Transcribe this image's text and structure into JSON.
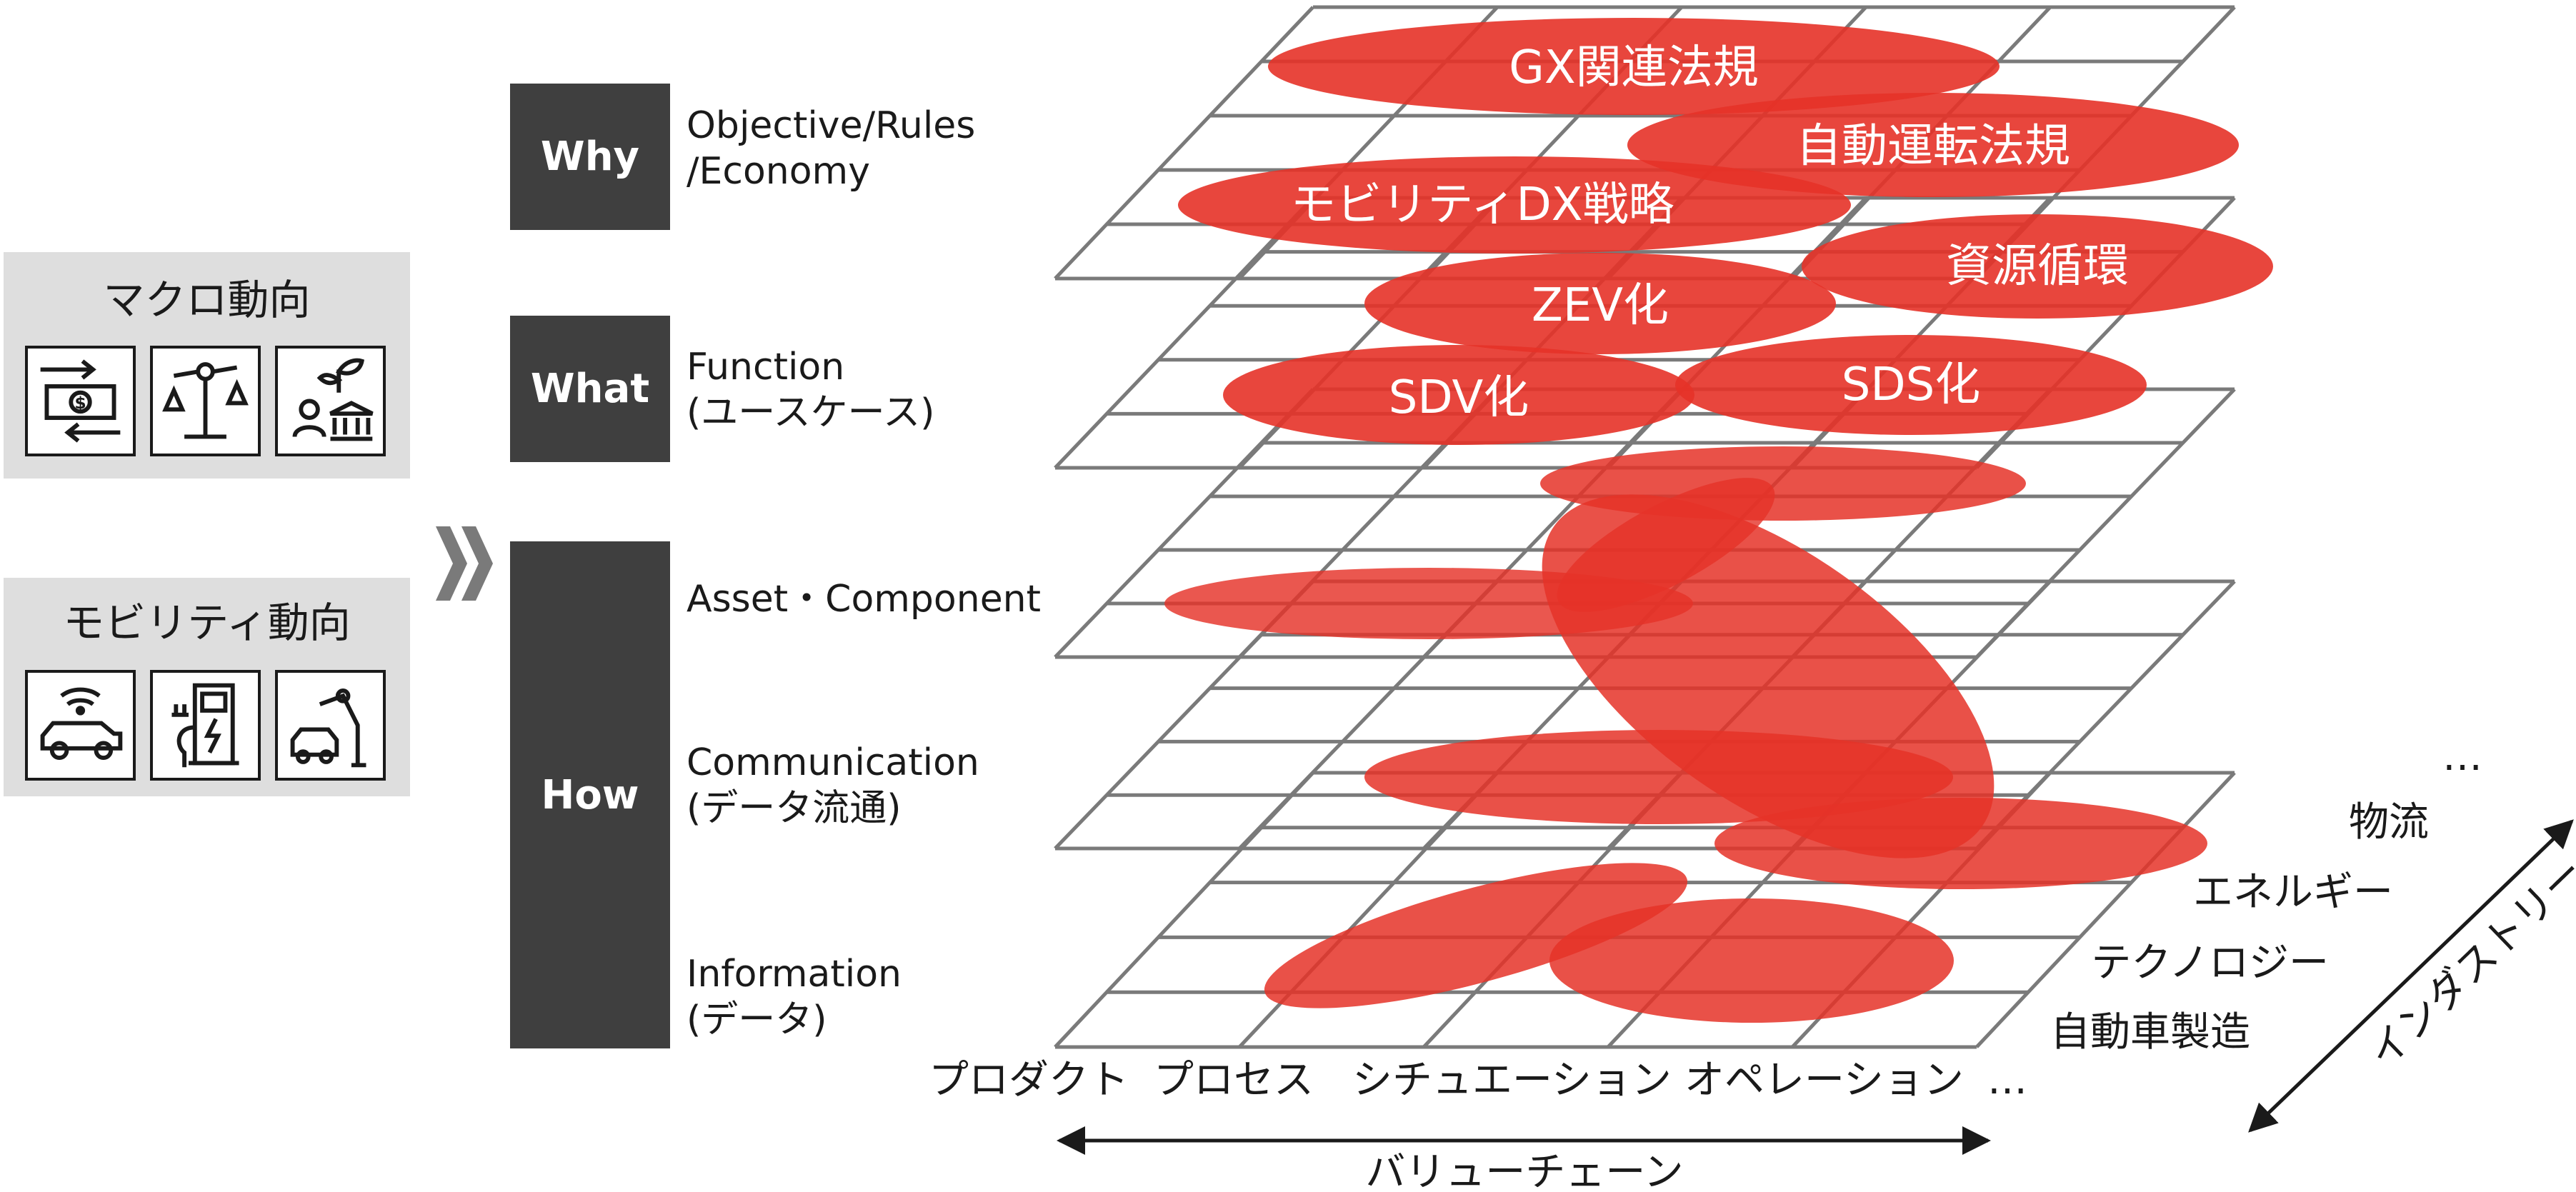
{
  "trends": {
    "macro": {
      "title": "マクロ動向",
      "icons": [
        "currency-exchange-icon",
        "balance-scale-icon",
        "plant-government-icon"
      ]
    },
    "mobility": {
      "title": "モビリティ動向",
      "icons": [
        "connected-car-icon",
        "ev-charger-icon",
        "robot-arm-car-icon"
      ]
    }
  },
  "tiers": {
    "why": {
      "label": "Why",
      "layers": [
        "Objective/Rules",
        "/Economy"
      ]
    },
    "what": {
      "label": "What",
      "layers": [
        "Function",
        "(ユースケース)"
      ]
    },
    "how": {
      "label": "How",
      "asset": [
        "Asset・Component"
      ],
      "communication": [
        "Communication",
        "(データ流通)"
      ],
      "information": [
        "Information",
        "(データ)"
      ]
    }
  },
  "axes": {
    "value_chain": {
      "label": "バリューチェーン",
      "items": [
        "プロダクト",
        "プロセス",
        "シチュエーション",
        "オペレーション",
        "…"
      ]
    },
    "industry": {
      "label": "インダストリー",
      "items": [
        "自動車製造",
        "テクノロジー",
        "エネルギー",
        "物流",
        "…"
      ]
    }
  },
  "themes": [
    {
      "label": "GX関連法規",
      "layer": "why"
    },
    {
      "label": "自動運転法規",
      "layer": "why"
    },
    {
      "label": "モビリティDX戦略",
      "layer": "why"
    },
    {
      "label": "資源循環",
      "layer": "what"
    },
    {
      "label": "ZEV化",
      "layer": "what"
    },
    {
      "label": "SDV化",
      "layer": "what"
    },
    {
      "label": "SDS化",
      "layer": "what"
    }
  ],
  "colors": {
    "dark_box": "#3f3f3f",
    "light_box": "#dedede",
    "blob": "#e53228",
    "grid": "#7a7a7a"
  }
}
